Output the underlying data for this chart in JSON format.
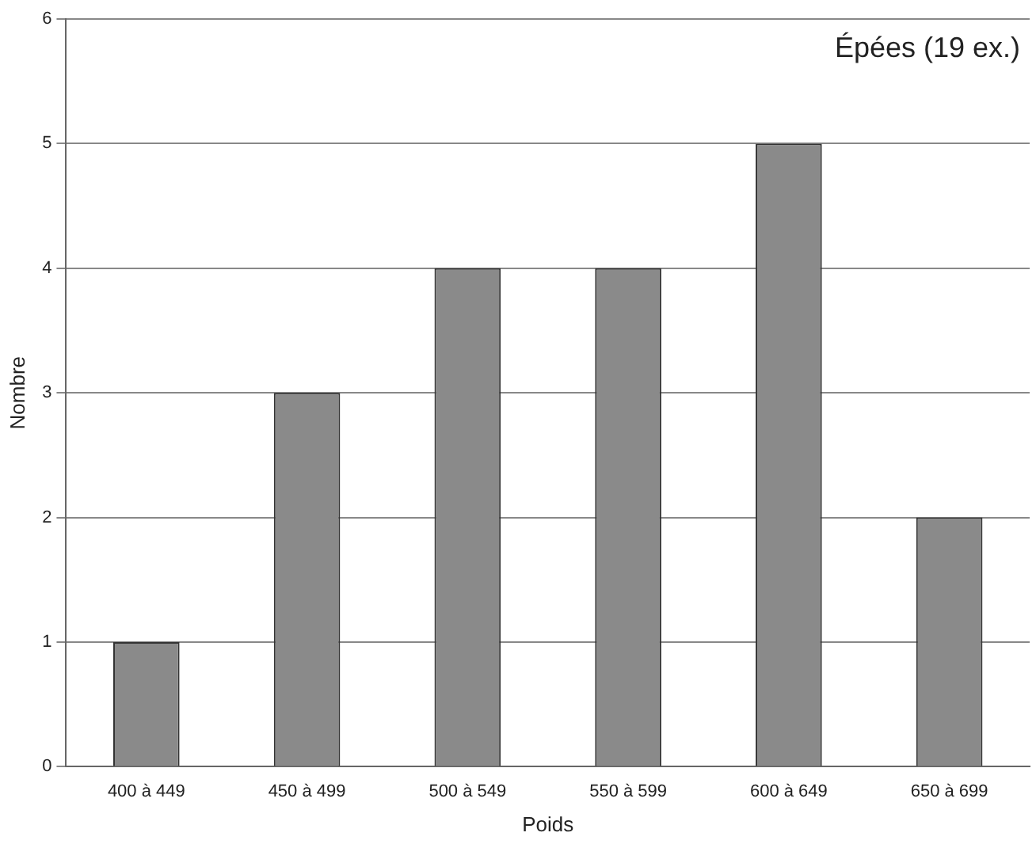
{
  "chart_data": {
    "type": "bar",
    "title": "Épées (19 ex.)",
    "xlabel": "Poids",
    "ylabel": "Nombre",
    "categories": [
      "400 à 449",
      "450 à 499",
      "500 à 549",
      "550 à 599",
      "600 à 649",
      "650 à 699"
    ],
    "values": [
      1,
      3,
      4,
      4,
      5,
      2
    ],
    "color": "#8a8a8a",
    "ylim": [
      0,
      6
    ],
    "yticks": [
      0,
      1,
      2,
      3,
      4,
      5,
      6
    ],
    "grid": "y"
  }
}
